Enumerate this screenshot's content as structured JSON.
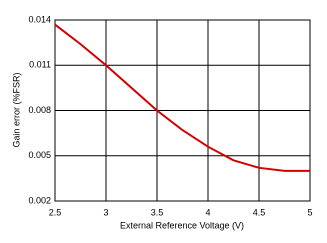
{
  "chart_data": {
    "type": "line",
    "x_label": "External Reference Voltage (V)",
    "y_label": "Gain error (%FSR)",
    "x": [
      2.5,
      2.75,
      3,
      3.25,
      3.5,
      3.75,
      4,
      4.25,
      4.5,
      4.75,
      5
    ],
    "series": [
      {
        "color": "#d40000",
        "values": [
          0.0137,
          0.0124,
          0.011,
          0.0095,
          0.008,
          0.0067,
          0.0056,
          0.0047,
          0.0042,
          0.004,
          0.004
        ]
      }
    ],
    "xlim": [
      2.5,
      5
    ],
    "xticks": [
      2.5,
      3,
      3.5,
      4,
      4.5,
      5
    ],
    "ylim": [
      0.002,
      0.014
    ],
    "yticks": [
      0.002,
      0.005,
      0.008,
      0.011,
      0.014
    ],
    "grid": true
  }
}
